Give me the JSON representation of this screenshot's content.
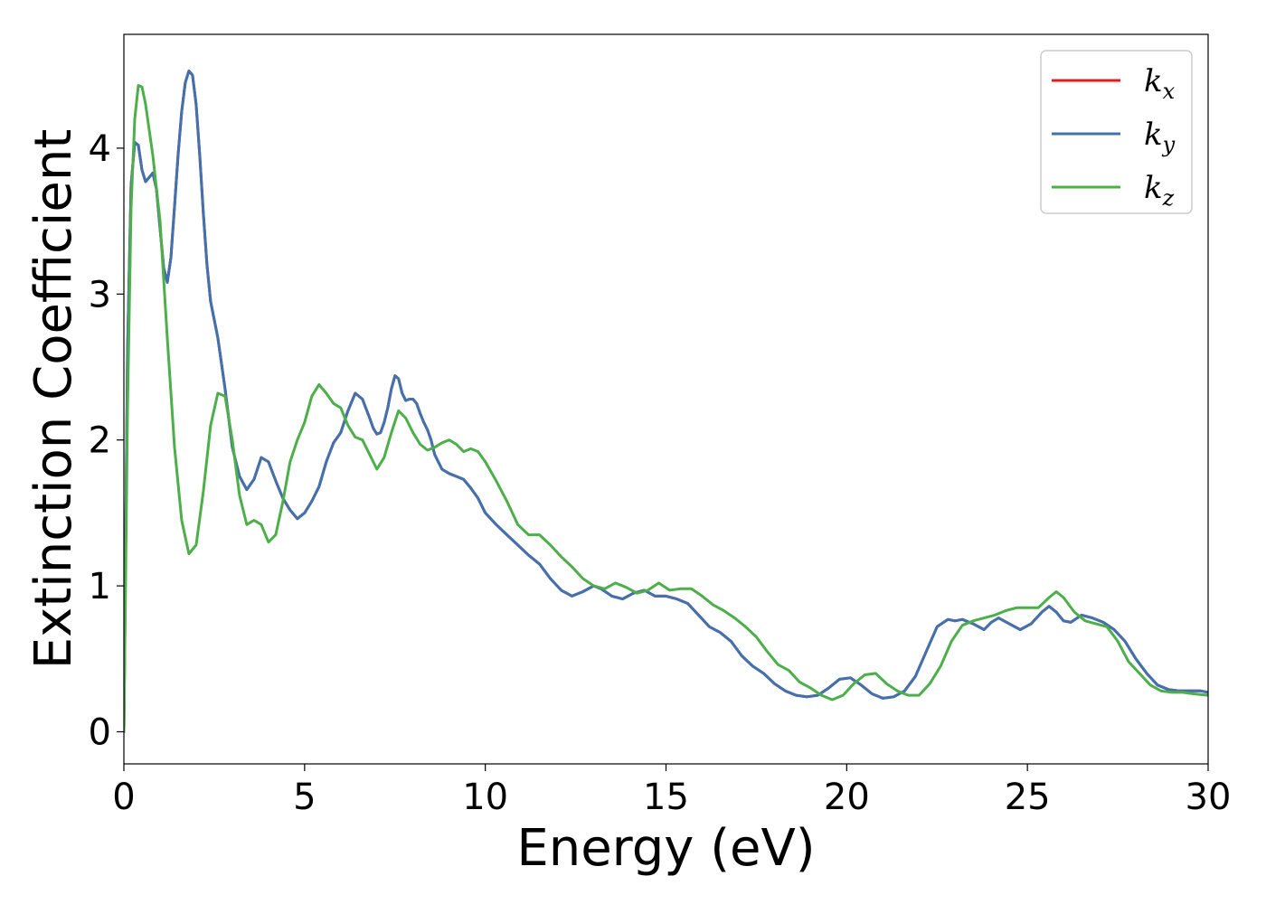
{
  "chart_data": {
    "type": "line",
    "title": "",
    "xlabel": "Energy (eV)",
    "ylabel": "Extinction Coefficient",
    "xlim": [
      0,
      30
    ],
    "ylim": [
      -0.22,
      4.78
    ],
    "xticks": [
      0,
      5,
      10,
      15,
      20,
      25,
      30
    ],
    "yticks": [
      0,
      1,
      2,
      3,
      4
    ],
    "grid": false,
    "legend_position": "top-right",
    "series": [
      {
        "name": "k_x",
        "label_base": "k",
        "label_sub": "x",
        "color": "#e41a1c",
        "x": [
          0,
          0.1,
          0.2,
          0.3,
          0.4,
          0.5,
          0.6,
          0.7,
          0.8,
          0.9,
          1.0,
          1.1,
          1.2,
          1.3,
          1.4,
          1.5,
          1.6,
          1.7,
          1.8,
          1.9,
          2.0,
          2.1,
          2.2,
          2.3,
          2.4,
          2.6,
          2.8,
          3.0,
          3.2,
          3.4,
          3.6,
          3.8,
          4.0,
          4.2,
          4.4,
          4.6,
          4.8,
          5.0,
          5.2,
          5.4,
          5.6,
          5.8,
          6.0,
          6.2,
          6.4,
          6.6,
          6.8,
          6.9,
          7.0,
          7.1,
          7.2,
          7.3,
          7.4,
          7.5,
          7.6,
          7.7,
          7.8,
          7.9,
          8.0,
          8.1,
          8.2,
          8.3,
          8.4,
          8.5,
          8.6,
          8.8,
          9.0,
          9.2,
          9.4,
          9.6,
          9.8,
          10.0,
          10.3,
          10.6,
          10.9,
          11.2,
          11.5,
          11.8,
          12.1,
          12.4,
          12.7,
          13.0,
          13.2,
          13.5,
          13.8,
          14.1,
          14.4,
          14.7,
          15.0,
          15.3,
          15.6,
          15.9,
          16.2,
          16.5,
          16.8,
          17.1,
          17.4,
          17.7,
          18.0,
          18.3,
          18.6,
          18.9,
          19.2,
          19.5,
          19.8,
          20.1,
          20.4,
          20.7,
          21.0,
          21.3,
          21.6,
          21.9,
          22.2,
          22.5,
          22.8,
          23.0,
          23.2,
          23.5,
          23.8,
          24.0,
          24.2,
          24.5,
          24.8,
          25.1,
          25.4,
          25.6,
          25.8,
          26.0,
          26.2,
          26.5,
          26.8,
          27.1,
          27.4,
          27.7,
          28.0,
          28.3,
          28.6,
          28.9,
          29.2,
          29.5,
          29.8,
          30.0
        ],
        "y": [
          0.0,
          2.6,
          3.75,
          4.04,
          4.02,
          3.85,
          3.77,
          3.8,
          3.83,
          3.72,
          3.45,
          3.18,
          3.08,
          3.25,
          3.6,
          3.95,
          4.25,
          4.45,
          4.53,
          4.5,
          4.3,
          3.95,
          3.55,
          3.2,
          2.95,
          2.7,
          2.35,
          1.95,
          1.75,
          1.66,
          1.73,
          1.88,
          1.85,
          1.72,
          1.6,
          1.52,
          1.46,
          1.5,
          1.58,
          1.68,
          1.85,
          1.98,
          2.05,
          2.2,
          2.32,
          2.28,
          2.15,
          2.08,
          2.04,
          2.05,
          2.12,
          2.22,
          2.35,
          2.44,
          2.42,
          2.32,
          2.27,
          2.28,
          2.28,
          2.25,
          2.18,
          2.12,
          2.07,
          2.0,
          1.9,
          1.8,
          1.77,
          1.75,
          1.73,
          1.67,
          1.6,
          1.5,
          1.42,
          1.35,
          1.28,
          1.21,
          1.15,
          1.05,
          0.97,
          0.93,
          0.96,
          1.0,
          0.98,
          0.93,
          0.91,
          0.95,
          0.97,
          0.93,
          0.93,
          0.91,
          0.88,
          0.8,
          0.72,
          0.68,
          0.62,
          0.52,
          0.45,
          0.4,
          0.33,
          0.28,
          0.25,
          0.24,
          0.25,
          0.3,
          0.36,
          0.37,
          0.32,
          0.26,
          0.23,
          0.24,
          0.28,
          0.38,
          0.55,
          0.72,
          0.77,
          0.76,
          0.77,
          0.74,
          0.7,
          0.75,
          0.78,
          0.74,
          0.7,
          0.74,
          0.82,
          0.86,
          0.82,
          0.76,
          0.75,
          0.8,
          0.78,
          0.75,
          0.7,
          0.62,
          0.5,
          0.4,
          0.32,
          0.29,
          0.28,
          0.28,
          0.28,
          0.27
        ],
        "visible_behind": true
      },
      {
        "name": "k_y",
        "label_base": "k",
        "label_sub": "y",
        "color": "#3f72af",
        "x": [
          0,
          0.1,
          0.2,
          0.3,
          0.4,
          0.5,
          0.6,
          0.7,
          0.8,
          0.9,
          1.0,
          1.1,
          1.2,
          1.3,
          1.4,
          1.5,
          1.6,
          1.7,
          1.8,
          1.9,
          2.0,
          2.1,
          2.2,
          2.3,
          2.4,
          2.6,
          2.8,
          3.0,
          3.2,
          3.4,
          3.6,
          3.8,
          4.0,
          4.2,
          4.4,
          4.6,
          4.8,
          5.0,
          5.2,
          5.4,
          5.6,
          5.8,
          6.0,
          6.2,
          6.4,
          6.6,
          6.8,
          6.9,
          7.0,
          7.1,
          7.2,
          7.3,
          7.4,
          7.5,
          7.6,
          7.7,
          7.8,
          7.9,
          8.0,
          8.1,
          8.2,
          8.3,
          8.4,
          8.5,
          8.6,
          8.8,
          9.0,
          9.2,
          9.4,
          9.6,
          9.8,
          10.0,
          10.3,
          10.6,
          10.9,
          11.2,
          11.5,
          11.8,
          12.1,
          12.4,
          12.7,
          13.0,
          13.2,
          13.5,
          13.8,
          14.1,
          14.4,
          14.7,
          15.0,
          15.3,
          15.6,
          15.9,
          16.2,
          16.5,
          16.8,
          17.1,
          17.4,
          17.7,
          18.0,
          18.3,
          18.6,
          18.9,
          19.2,
          19.5,
          19.8,
          20.1,
          20.4,
          20.7,
          21.0,
          21.3,
          21.6,
          21.9,
          22.2,
          22.5,
          22.8,
          23.0,
          23.2,
          23.5,
          23.8,
          24.0,
          24.2,
          24.5,
          24.8,
          25.1,
          25.4,
          25.6,
          25.8,
          26.0,
          26.2,
          26.5,
          26.8,
          27.1,
          27.4,
          27.7,
          28.0,
          28.3,
          28.6,
          28.9,
          29.2,
          29.5,
          29.8,
          30.0
        ],
        "y": [
          0.0,
          2.6,
          3.75,
          4.04,
          4.02,
          3.85,
          3.77,
          3.8,
          3.83,
          3.72,
          3.45,
          3.18,
          3.08,
          3.25,
          3.6,
          3.95,
          4.25,
          4.45,
          4.53,
          4.5,
          4.3,
          3.95,
          3.55,
          3.2,
          2.95,
          2.7,
          2.35,
          1.95,
          1.75,
          1.66,
          1.73,
          1.88,
          1.85,
          1.72,
          1.6,
          1.52,
          1.46,
          1.5,
          1.58,
          1.68,
          1.85,
          1.98,
          2.05,
          2.2,
          2.32,
          2.28,
          2.15,
          2.08,
          2.04,
          2.05,
          2.12,
          2.22,
          2.35,
          2.44,
          2.42,
          2.32,
          2.27,
          2.28,
          2.28,
          2.25,
          2.18,
          2.12,
          2.07,
          2.0,
          1.9,
          1.8,
          1.77,
          1.75,
          1.73,
          1.67,
          1.6,
          1.5,
          1.42,
          1.35,
          1.28,
          1.21,
          1.15,
          1.05,
          0.97,
          0.93,
          0.96,
          1.0,
          0.98,
          0.93,
          0.91,
          0.95,
          0.97,
          0.93,
          0.93,
          0.91,
          0.88,
          0.8,
          0.72,
          0.68,
          0.62,
          0.52,
          0.45,
          0.4,
          0.33,
          0.28,
          0.25,
          0.24,
          0.25,
          0.3,
          0.36,
          0.37,
          0.32,
          0.26,
          0.23,
          0.24,
          0.28,
          0.38,
          0.55,
          0.72,
          0.77,
          0.76,
          0.77,
          0.74,
          0.7,
          0.75,
          0.78,
          0.74,
          0.7,
          0.74,
          0.82,
          0.86,
          0.82,
          0.76,
          0.75,
          0.8,
          0.78,
          0.75,
          0.7,
          0.62,
          0.5,
          0.4,
          0.32,
          0.29,
          0.28,
          0.28,
          0.28,
          0.27
        ]
      },
      {
        "name": "k_z",
        "label_base": "k",
        "label_sub": "z",
        "color": "#4daf4a",
        "x": [
          0,
          0.1,
          0.2,
          0.3,
          0.4,
          0.5,
          0.6,
          0.8,
          1.0,
          1.2,
          1.4,
          1.6,
          1.8,
          2.0,
          2.2,
          2.4,
          2.6,
          2.8,
          3.0,
          3.2,
          3.4,
          3.6,
          3.8,
          4.0,
          4.2,
          4.4,
          4.6,
          4.8,
          5.0,
          5.2,
          5.4,
          5.6,
          5.8,
          6.0,
          6.2,
          6.4,
          6.6,
          6.8,
          7.0,
          7.2,
          7.4,
          7.6,
          7.8,
          8.0,
          8.2,
          8.4,
          8.6,
          8.8,
          9.0,
          9.2,
          9.4,
          9.6,
          9.8,
          10.0,
          10.3,
          10.6,
          10.9,
          11.2,
          11.5,
          11.8,
          12.1,
          12.4,
          12.7,
          13.0,
          13.3,
          13.6,
          13.9,
          14.2,
          14.5,
          14.8,
          15.1,
          15.4,
          15.7,
          16.0,
          16.3,
          16.6,
          16.9,
          17.2,
          17.5,
          17.8,
          18.1,
          18.4,
          18.7,
          19.0,
          19.3,
          19.6,
          19.9,
          20.2,
          20.5,
          20.8,
          21.1,
          21.4,
          21.7,
          22.0,
          22.3,
          22.6,
          22.9,
          23.2,
          23.5,
          23.8,
          24.1,
          24.4,
          24.7,
          25.0,
          25.3,
          25.6,
          25.8,
          26.0,
          26.3,
          26.6,
          26.9,
          27.2,
          27.5,
          27.8,
          28.1,
          28.4,
          28.7,
          29.0,
          29.3,
          29.6,
          30.0
        ],
        "y": [
          0.0,
          2.2,
          3.6,
          4.2,
          4.43,
          4.42,
          4.3,
          3.95,
          3.5,
          2.7,
          1.95,
          1.45,
          1.22,
          1.28,
          1.65,
          2.1,
          2.32,
          2.3,
          2.0,
          1.62,
          1.42,
          1.45,
          1.42,
          1.3,
          1.35,
          1.58,
          1.85,
          2.0,
          2.12,
          2.3,
          2.38,
          2.32,
          2.25,
          2.22,
          2.1,
          2.02,
          2.0,
          1.9,
          1.8,
          1.88,
          2.05,
          2.2,
          2.15,
          2.05,
          1.97,
          1.93,
          1.95,
          1.98,
          2.0,
          1.97,
          1.92,
          1.94,
          1.92,
          1.85,
          1.72,
          1.58,
          1.42,
          1.35,
          1.35,
          1.28,
          1.2,
          1.13,
          1.05,
          1.0,
          0.98,
          1.02,
          0.99,
          0.95,
          0.97,
          1.02,
          0.97,
          0.98,
          0.98,
          0.93,
          0.87,
          0.83,
          0.78,
          0.72,
          0.65,
          0.55,
          0.46,
          0.42,
          0.34,
          0.3,
          0.25,
          0.22,
          0.25,
          0.33,
          0.39,
          0.4,
          0.33,
          0.28,
          0.25,
          0.25,
          0.33,
          0.45,
          0.62,
          0.73,
          0.76,
          0.78,
          0.8,
          0.83,
          0.85,
          0.85,
          0.85,
          0.92,
          0.96,
          0.92,
          0.82,
          0.76,
          0.74,
          0.72,
          0.62,
          0.48,
          0.4,
          0.32,
          0.28,
          0.27,
          0.27,
          0.26,
          0.25
        ]
      }
    ]
  }
}
